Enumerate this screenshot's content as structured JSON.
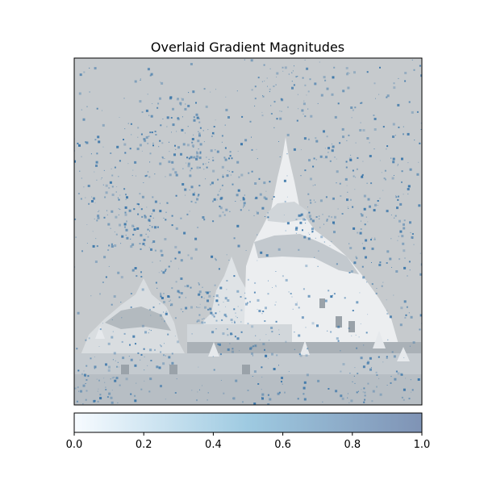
{
  "chart_data": {
    "type": "heatmap",
    "title": "Overlaid Gradient Magnitudes",
    "xlabel": "",
    "ylabel": "",
    "image_axis_ticks": "hidden",
    "background_image": "grayscale photo of a white stupa temple with a tall spire, lighter sky background",
    "overlay_description": "blue-tinted gradient magnitude speckles scattered over sky and temple",
    "colorbar": {
      "orientation": "horizontal",
      "placement": "bottom",
      "colormap": "Blues",
      "range": [
        0.0,
        1.0
      ],
      "tick_values": [
        0.0,
        0.2,
        0.4,
        0.6,
        0.8,
        1.0
      ],
      "tick_labels": [
        "0.0",
        "0.2",
        "0.4",
        "0.6",
        "0.8",
        "1.0"
      ],
      "color_low": "#f7fbff",
      "color_mid": "#9ecae1",
      "color_high": "#7f93b5"
    },
    "colors": {
      "sky": "#c6cacd",
      "temple_light": "#eef0f2",
      "temple_shadow": "#a9b0b6",
      "speckle": "#2f6fa6"
    }
  }
}
